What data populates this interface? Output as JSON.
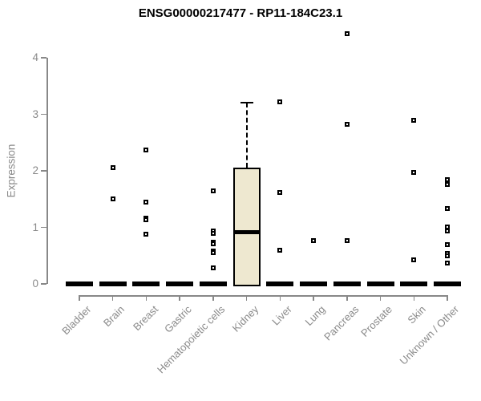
{
  "title": "ENSG00000217477 - RP11-184C23.1",
  "colors": {
    "background": "#ffffff",
    "title": "#000000",
    "axis": "#888888",
    "tick_label": "#8a8a8a",
    "box_fill": "#EEE8D0",
    "box_border": "#000000",
    "median": "#000000",
    "point": "#000000"
  },
  "chart_data": {
    "type": "box",
    "title": "ENSG00000217477 - RP11-184C23.1",
    "xlabel": "",
    "ylabel": "Expression",
    "ylim": [
      0,
      4.6
    ],
    "yticks": [
      0,
      1,
      2,
      3,
      4
    ],
    "grid": false,
    "legend": null,
    "categories": [
      "Bladder",
      "Brain",
      "Breast",
      "Gastric",
      "Hematopoietic cells",
      "Kidney",
      "Liver",
      "Lung",
      "Pancreas",
      "Prostate",
      "Skin",
      "Unknown / Other"
    ],
    "boxes": [
      {
        "category": "Bladder",
        "q1": 0,
        "median": 0,
        "q3": 0,
        "whisker_low": 0,
        "whisker_high": 0,
        "outliers": []
      },
      {
        "category": "Brain",
        "q1": 0,
        "median": 0,
        "q3": 0,
        "whisker_low": 0,
        "whisker_high": 0,
        "outliers": [
          2.06,
          1.51
        ]
      },
      {
        "category": "Breast",
        "q1": 0,
        "median": 0,
        "q3": 0,
        "whisker_low": 0,
        "whisker_high": 0,
        "outliers": [
          2.37,
          1.45,
          1.17,
          1.13,
          0.88
        ]
      },
      {
        "category": "Gastric",
        "q1": 0,
        "median": 0,
        "q3": 0,
        "whisker_low": 0,
        "whisker_high": 0,
        "outliers": []
      },
      {
        "category": "Hematopoietic cells",
        "q1": 0,
        "median": 0,
        "q3": 0,
        "whisker_low": 0,
        "whisker_high": 0,
        "outliers": [
          1.64,
          0.93,
          0.89,
          0.74,
          0.71,
          0.58,
          0.55,
          0.29
        ]
      },
      {
        "category": "Kidney",
        "q1": 0,
        "median": 0.92,
        "q3": 2.05,
        "whisker_low": 0,
        "whisker_high": 3.2,
        "outliers": []
      },
      {
        "category": "Liver",
        "q1": 0,
        "median": 0,
        "q3": 0,
        "whisker_low": 0,
        "whisker_high": 0,
        "outliers": [
          3.22,
          1.61,
          0.6
        ]
      },
      {
        "category": "Lung",
        "q1": 0,
        "median": 0,
        "q3": 0,
        "whisker_low": 0,
        "whisker_high": 0,
        "outliers": [
          0.76
        ]
      },
      {
        "category": "Pancreas",
        "q1": 0,
        "median": 0,
        "q3": 0,
        "whisker_low": 0,
        "whisker_high": 0,
        "outliers": [
          4.43,
          2.82,
          0.77
        ]
      },
      {
        "category": "Prostate",
        "q1": 0,
        "median": 0,
        "q3": 0,
        "whisker_low": 0,
        "whisker_high": 0,
        "outliers": []
      },
      {
        "category": "Skin",
        "q1": 0,
        "median": 0,
        "q3": 0,
        "whisker_low": 0,
        "whisker_high": 0,
        "outliers": [
          2.89,
          1.97,
          0.43
        ]
      },
      {
        "category": "Unknown / Other",
        "q1": 0,
        "median": 0,
        "q3": 0,
        "whisker_low": 0,
        "whisker_high": 0,
        "outliers": [
          1.84,
          1.76,
          1.33,
          1.01,
          0.94,
          0.69,
          0.54,
          0.5,
          0.37
        ]
      }
    ]
  }
}
